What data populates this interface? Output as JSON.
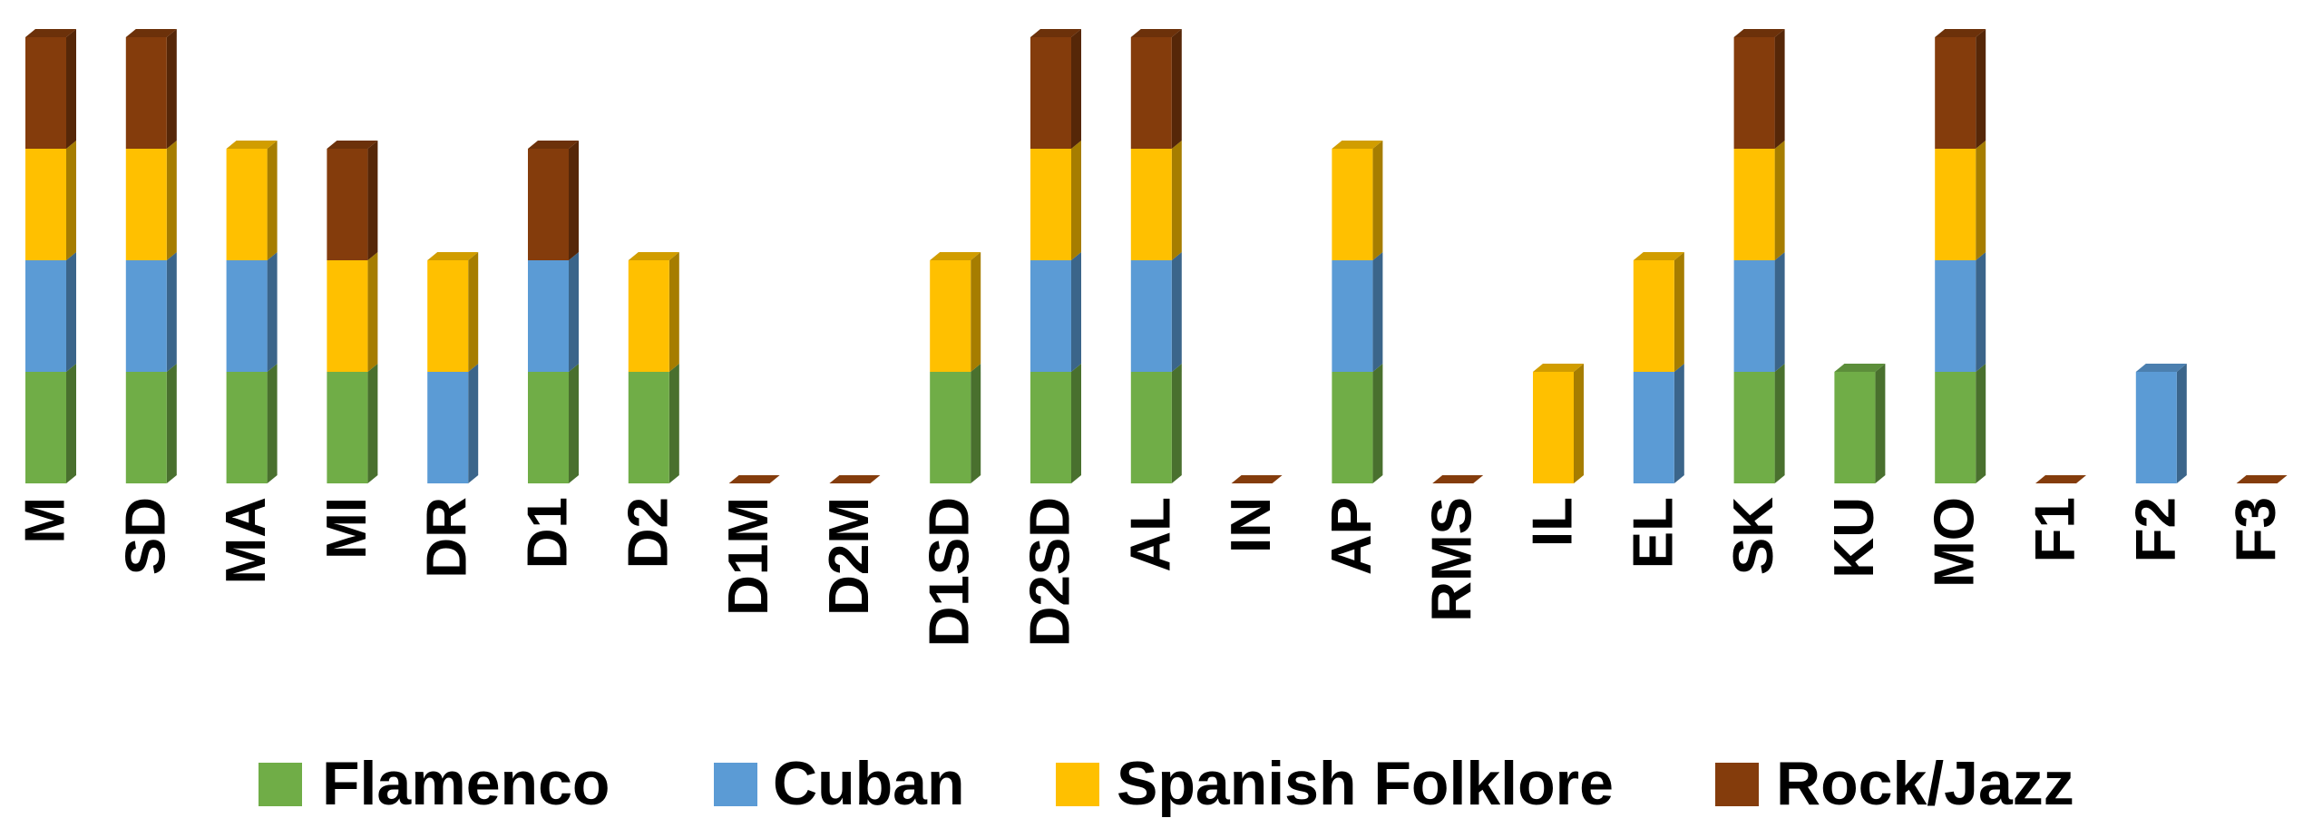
{
  "chart_data": {
    "type": "bar",
    "stacked": true,
    "three_d": true,
    "categories": [
      "M",
      "SD",
      "MA",
      "MI",
      "DR",
      "D1",
      "D2",
      "D1M",
      "D2M",
      "D1SD",
      "D2SD",
      "AL",
      "IN",
      "AP",
      "RMS",
      "IL",
      "EL",
      "SK",
      "KU",
      "MO",
      "F1",
      "F2",
      "F3"
    ],
    "series": [
      {
        "name": "Flamenco",
        "color": "#70AD47",
        "values": [
          1,
          1,
          1,
          1,
          0,
          1,
          1,
          0,
          0,
          1,
          1,
          1,
          0,
          1,
          0,
          0,
          0,
          1,
          1,
          1,
          0,
          0,
          0
        ]
      },
      {
        "name": "Cuban",
        "color": "#5B9BD5",
        "values": [
          1,
          1,
          1,
          0,
          1,
          1,
          0,
          0,
          0,
          0,
          1,
          1,
          0,
          1,
          0,
          0,
          1,
          1,
          0,
          1,
          0,
          1,
          0
        ]
      },
      {
        "name": "Spanish Folklore",
        "color": "#FFC000",
        "values": [
          1,
          1,
          1,
          1,
          1,
          0,
          1,
          0,
          0,
          1,
          1,
          1,
          0,
          1,
          0,
          1,
          1,
          1,
          0,
          1,
          0,
          0,
          0
        ]
      },
      {
        "name": "Rock/Jazz",
        "color": "#843C0C",
        "values": [
          1,
          1,
          0,
          1,
          0,
          1,
          0,
          0,
          0,
          0,
          1,
          1,
          0,
          0,
          0,
          0,
          0,
          1,
          0,
          1,
          0,
          0,
          0
        ]
      }
    ],
    "ylim": [
      0,
      4
    ],
    "grid": false,
    "legend": "bottom",
    "title": "",
    "xlabel": "",
    "ylabel": ""
  }
}
